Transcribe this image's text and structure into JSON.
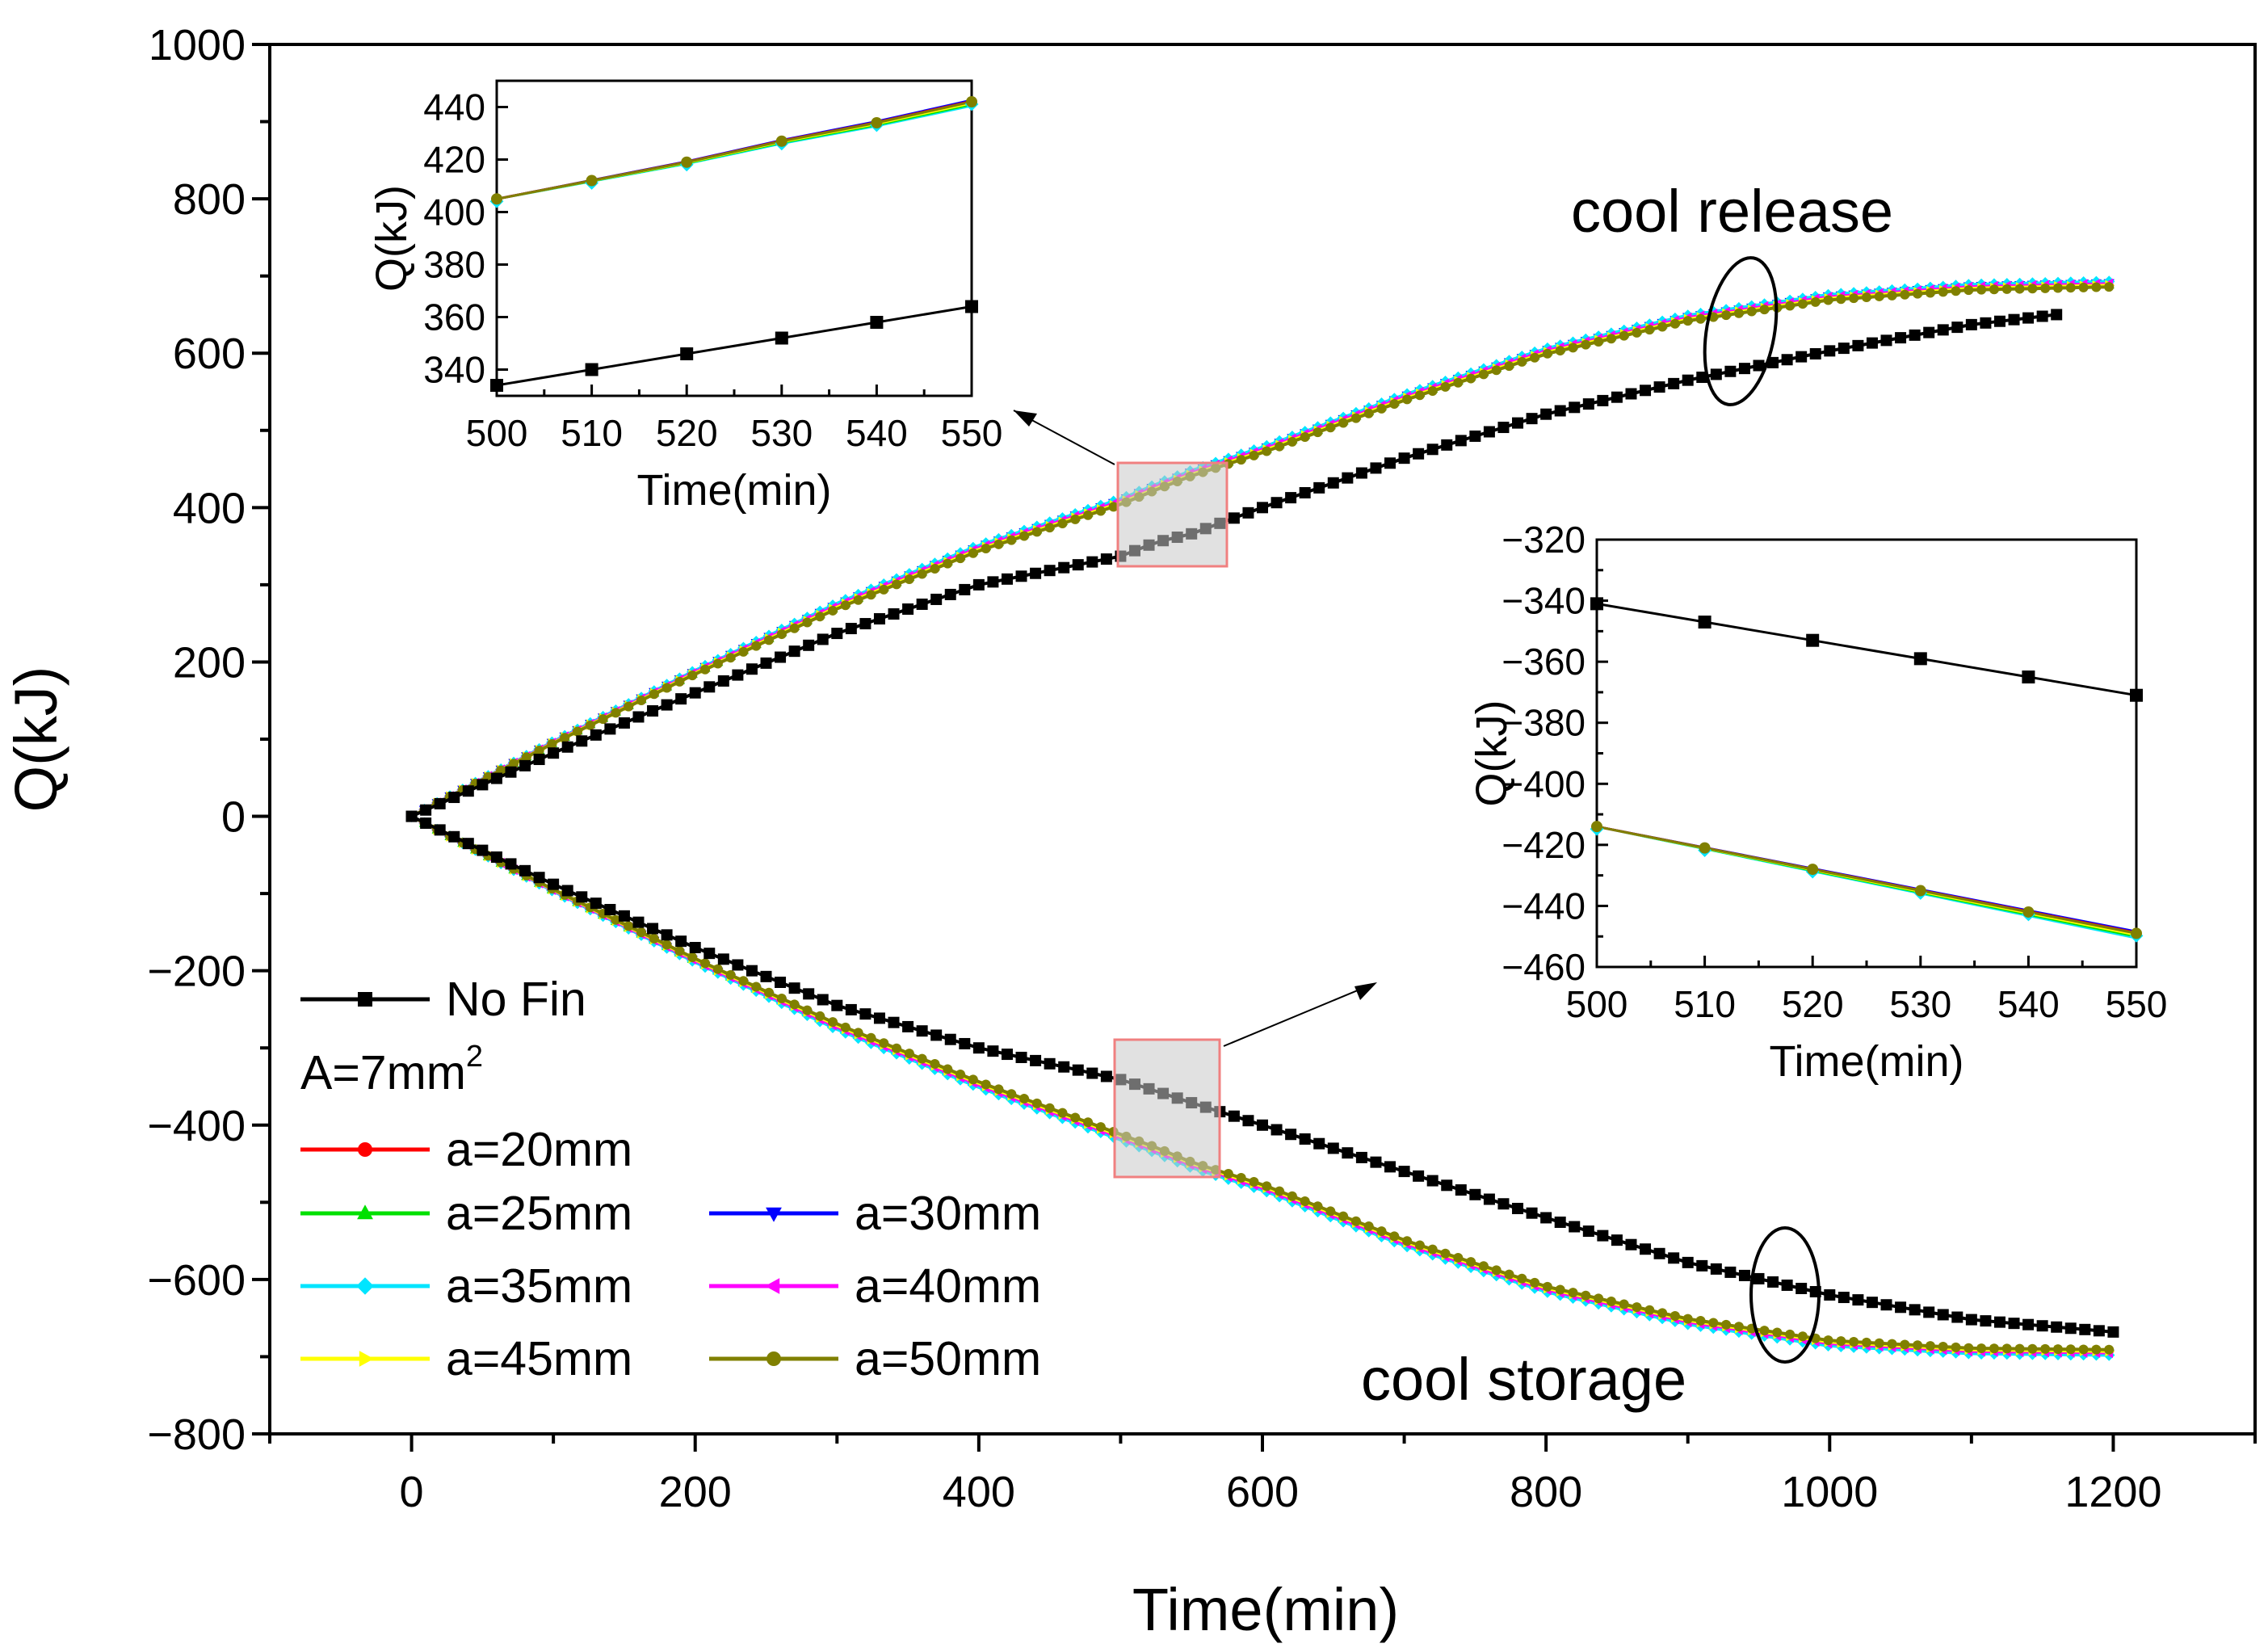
{
  "chart_data": {
    "type": "line",
    "xlabel": "Time(min)",
    "ylabel": "Q(kJ)",
    "xlim": [
      -100,
      1300
    ],
    "ylim": [
      -800,
      1000
    ],
    "xticks": [
      0,
      200,
      400,
      600,
      800,
      1000,
      1200
    ],
    "yticks": [
      -800,
      -600,
      -400,
      -200,
      0,
      200,
      400,
      600,
      800,
      1000
    ],
    "legend_group_title": "A=7mm",
    "legend_group_title_sup": "2",
    "annotations": [
      "cool release",
      "cool storage"
    ],
    "series": [
      {
        "name": "No Fin",
        "color": "#000000",
        "marker": "square",
        "release": {
          "x": [
            0,
            100,
            200,
            300,
            400,
            500,
            525,
            550,
            600,
            700,
            800,
            900,
            1000,
            1100,
            1160
          ],
          "y": [
            0,
            82,
            160,
            237,
            300,
            337,
            355,
            366,
            400,
            464,
            521,
            565,
            603,
            637,
            650
          ]
        },
        "storage": {
          "x": [
            0,
            100,
            200,
            300,
            400,
            500,
            525,
            550,
            600,
            700,
            800,
            900,
            1000,
            1100,
            1200
          ],
          "y": [
            0,
            -88,
            -170,
            -245,
            -300,
            -341,
            -356,
            -371,
            -400,
            -460,
            -520,
            -578,
            -620,
            -652,
            -668
          ]
        }
      },
      {
        "name": "a=20mm",
        "color": "#ff0000",
        "marker": "circle",
        "release": {
          "x": [
            0,
            100,
            200,
            300,
            400,
            500,
            525,
            550,
            600,
            700,
            800,
            900,
            1000,
            1100,
            1200
          ],
          "y": [
            0,
            95,
            185,
            270,
            345,
            405,
            424,
            442,
            472,
            540,
            600,
            643,
            670,
            683,
            687
          ]
        },
        "storage": {
          "x": [
            0,
            100,
            200,
            300,
            400,
            500,
            525,
            550,
            600,
            700,
            800,
            900,
            1000,
            1100,
            1200
          ],
          "y": [
            0,
            -95,
            -185,
            -270,
            -345,
            -413,
            -430,
            -449,
            -478,
            -550,
            -610,
            -652,
            -680,
            -690,
            -692
          ]
        }
      },
      {
        "name": "a=25mm",
        "color": "#00e000",
        "marker": "triangle-up",
        "release": null,
        "storage": null
      },
      {
        "name": "a=30mm",
        "color": "#0000ff",
        "marker": "triangle-down",
        "release": null,
        "storage": null
      },
      {
        "name": "a=35mm",
        "color": "#00e5ff",
        "marker": "diamond",
        "release": null,
        "storage": null
      },
      {
        "name": "a=40mm",
        "color": "#ff00ff",
        "marker": "triangle-left",
        "release": null,
        "storage": null
      },
      {
        "name": "a=45mm",
        "color": "#ffff00",
        "marker": "triangle-right",
        "release": null,
        "storage": null
      },
      {
        "name": "a=50mm",
        "color": "#808000",
        "marker": "circle",
        "release": null,
        "storage": null
      }
    ],
    "insets": [
      {
        "xlabel": "Time(min)",
        "ylabel": "Q(kJ)",
        "xlim": [
          500,
          550
        ],
        "ylim": [
          330,
          450
        ],
        "xticks": [
          500,
          510,
          520,
          530,
          540,
          550
        ],
        "yticks": [
          340,
          360,
          380,
          400,
          420,
          440
        ],
        "x": [
          500,
          510,
          520,
          530,
          540,
          550
        ],
        "no_fin": [
          334,
          340,
          346,
          352,
          358,
          364
        ],
        "finned": [
          405,
          412,
          419,
          427,
          434,
          442
        ]
      },
      {
        "xlabel": "Time(min)",
        "ylabel": "Q(kJ)",
        "xlim": [
          500,
          550
        ],
        "ylim": [
          -460,
          -320
        ],
        "xticks": [
          500,
          510,
          520,
          530,
          540,
          550
        ],
        "yticks": [
          -320,
          -340,
          -360,
          -380,
          -400,
          -420,
          -440,
          -460
        ],
        "x": [
          500,
          510,
          520,
          530,
          540,
          550
        ],
        "no_fin": [
          -341,
          -347,
          -353,
          -359,
          -365,
          -371
        ],
        "finned": [
          -414,
          -421,
          -428,
          -435,
          -442,
          -449
        ]
      }
    ]
  }
}
